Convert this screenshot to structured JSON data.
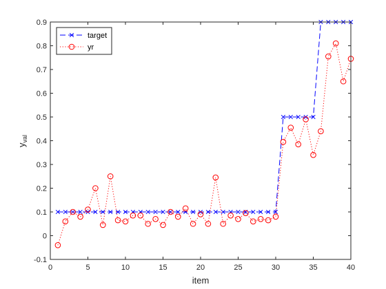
{
  "chart_data": {
    "type": "line",
    "title": "",
    "xlabel": "item",
    "ylabel": "y",
    "ylabel_sub": "val",
    "xlim": [
      0,
      40
    ],
    "ylim": [
      -0.1,
      0.9
    ],
    "xticks": [
      0,
      5,
      10,
      15,
      20,
      25,
      30,
      35,
      40
    ],
    "yticks": [
      -0.1,
      0,
      0.1,
      0.2,
      0.3,
      0.4,
      0.5,
      0.6,
      0.7,
      0.8,
      0.9
    ],
    "xtick_labels": [
      "0",
      "5",
      "10",
      "15",
      "20",
      "25",
      "30",
      "35",
      "40"
    ],
    "ytick_labels": [
      "-0.1",
      "0",
      "0.1",
      "0.2",
      "0.3",
      "0.4",
      "0.5",
      "0.6",
      "0.7",
      "0.8",
      "0.9"
    ],
    "grid": false,
    "legend_position": "top-left",
    "x": [
      1,
      2,
      3,
      4,
      5,
      6,
      7,
      8,
      9,
      10,
      11,
      12,
      13,
      14,
      15,
      16,
      17,
      18,
      19,
      20,
      21,
      22,
      23,
      24,
      25,
      26,
      27,
      28,
      29,
      30,
      31,
      32,
      33,
      34,
      35,
      36,
      37,
      38,
      39,
      40
    ],
    "series": [
      {
        "name": "target",
        "color": "#0000ff",
        "line_style": "dashed",
        "marker": "x",
        "values": [
          0.1,
          0.1,
          0.1,
          0.1,
          0.1,
          0.1,
          0.1,
          0.1,
          0.1,
          0.1,
          0.1,
          0.1,
          0.1,
          0.1,
          0.1,
          0.1,
          0.1,
          0.1,
          0.1,
          0.1,
          0.1,
          0.1,
          0.1,
          0.1,
          0.1,
          0.1,
          0.1,
          0.1,
          0.1,
          0.1,
          0.5,
          0.5,
          0.5,
          0.5,
          0.5,
          0.9,
          0.9,
          0.9,
          0.9,
          0.9
        ]
      },
      {
        "name": "yr",
        "color": "#ff0000",
        "line_style": "dotted",
        "marker": "circle",
        "values": [
          -0.04,
          0.06,
          0.1,
          0.08,
          0.11,
          0.2,
          0.045,
          0.25,
          0.065,
          0.06,
          0.085,
          0.085,
          0.05,
          0.07,
          0.045,
          0.1,
          0.08,
          0.115,
          0.05,
          0.09,
          0.05,
          0.245,
          0.05,
          0.085,
          0.07,
          0.095,
          0.06,
          0.07,
          0.065,
          0.08,
          0.395,
          0.455,
          0.385,
          0.49,
          0.34,
          0.44,
          0.755,
          0.81,
          0.65,
          0.745
        ]
      }
    ]
  }
}
